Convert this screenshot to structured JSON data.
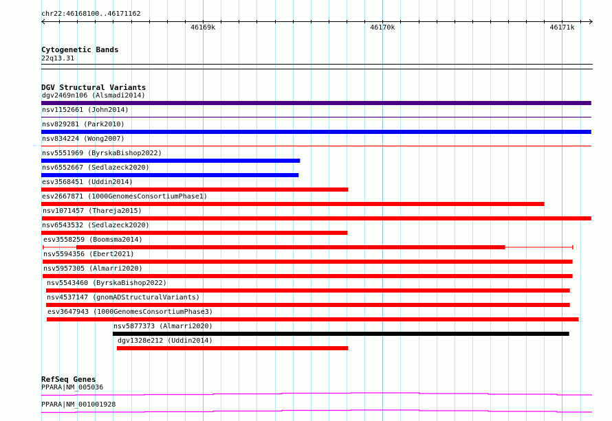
{
  "ruler": {
    "location": "chr22:46168100..46171162",
    "start": 46168100,
    "end": 46171162,
    "ticks": [
      {
        "pos": 46169000,
        "label": "46169k"
      },
      {
        "pos": 46170000,
        "label": "46170k"
      },
      {
        "pos": 46171000,
        "label": "46171k"
      }
    ]
  },
  "cytobands": {
    "title": "Cytogenetic Bands",
    "band": "22q13.31"
  },
  "dgv": {
    "title": "DGV Structural Variants",
    "features": [
      {
        "label": "dgv2469n106 (Alsmadi2014)",
        "start": 46168100,
        "end": 46171162,
        "color": "#4b0082",
        "style": "thick"
      },
      {
        "label": "nsv1152661 (John2014)",
        "start": 46168100,
        "end": 46171162,
        "color": "#4b0082",
        "style": "thin"
      },
      {
        "label": "nsv829281 (Park2010)",
        "start": 46168100,
        "end": 46171162,
        "color": "#0000ff",
        "style": "thick"
      },
      {
        "label": "nsv834224 (Wong2007)",
        "start": 46168100,
        "end": 46171162,
        "color": "#ff0000",
        "style": "thin"
      },
      {
        "label": "nsv5551969 (ByrskaBishop2022)",
        "start": 46168100,
        "end": 46169541,
        "color": "#0000ff",
        "style": "thick"
      },
      {
        "label": "nsv6552667 (Sedlazeck2020)",
        "start": 46168100,
        "end": 46169533,
        "color": "#0000ff",
        "style": "thick"
      },
      {
        "label": "esv3568451 (Uddin2014)",
        "start": 46168100,
        "end": 46169809,
        "color": "#ff0000",
        "style": "thick"
      },
      {
        "label": "esv2667871 (1000GenomesConsortiumPhase1)",
        "start": 46168100,
        "end": 46170901,
        "color": "#ff0000",
        "style": "thick"
      },
      {
        "label": "nsv1071457 (Thareja2015)",
        "start": 46168104,
        "end": 46171162,
        "color": "#ff0000",
        "style": "thick"
      },
      {
        "label": "nsv6543532 (Sedlazeck2020)",
        "start": 46168100,
        "end": 46169805,
        "color": "#ff0000",
        "style": "thick"
      },
      {
        "label": "esv3558259 (Boomsma2014)",
        "start": 46168108,
        "end": 46171062,
        "thickStart": 46168295,
        "thickEnd": 46170682,
        "color": "#ff0000",
        "style": "partial"
      },
      {
        "label": "nsv5594356 (Ebert2021)",
        "start": 46168108,
        "end": 46171058,
        "color": "#ff0000",
        "style": "thick"
      },
      {
        "label": "nsv5957305 (Almarri2020)",
        "start": 46168108,
        "end": 46171058,
        "color": "#ff0000",
        "style": "thick"
      },
      {
        "label": "nsv5543460 (ByrskaBishop2022)",
        "start": 46168127,
        "end": 46171043,
        "color": "#ff0000",
        "style": "thick"
      },
      {
        "label": "nsv4537147 (gnomADStructuralVariants)",
        "start": 46168127,
        "end": 46171043,
        "color": "#ff0000",
        "style": "thick"
      },
      {
        "label": "esv3647943 (1000GenomesConsortiumPhase3)",
        "start": 46168131,
        "end": 46171092,
        "color": "#ff0000",
        "style": "thick"
      },
      {
        "label": "nsv5877373 (Almarri2020)",
        "start": 46168498,
        "end": 46171039,
        "color": "#000000",
        "style": "thick"
      },
      {
        "label": "dgv1328e212 (Uddin2014)",
        "start": 46168521,
        "end": 46169809,
        "color": "#ff0000",
        "style": "thick"
      }
    ]
  },
  "refseq": {
    "title": "RefSeq Genes",
    "color": "#ff00ff",
    "genes": [
      {
        "label": "PPARA|NM_005036"
      },
      {
        "label": "PPARA|NM_001001928"
      }
    ]
  },
  "colors": {
    "grid_minor": "#b4eaf0",
    "grid_major": "#88c8e8"
  }
}
